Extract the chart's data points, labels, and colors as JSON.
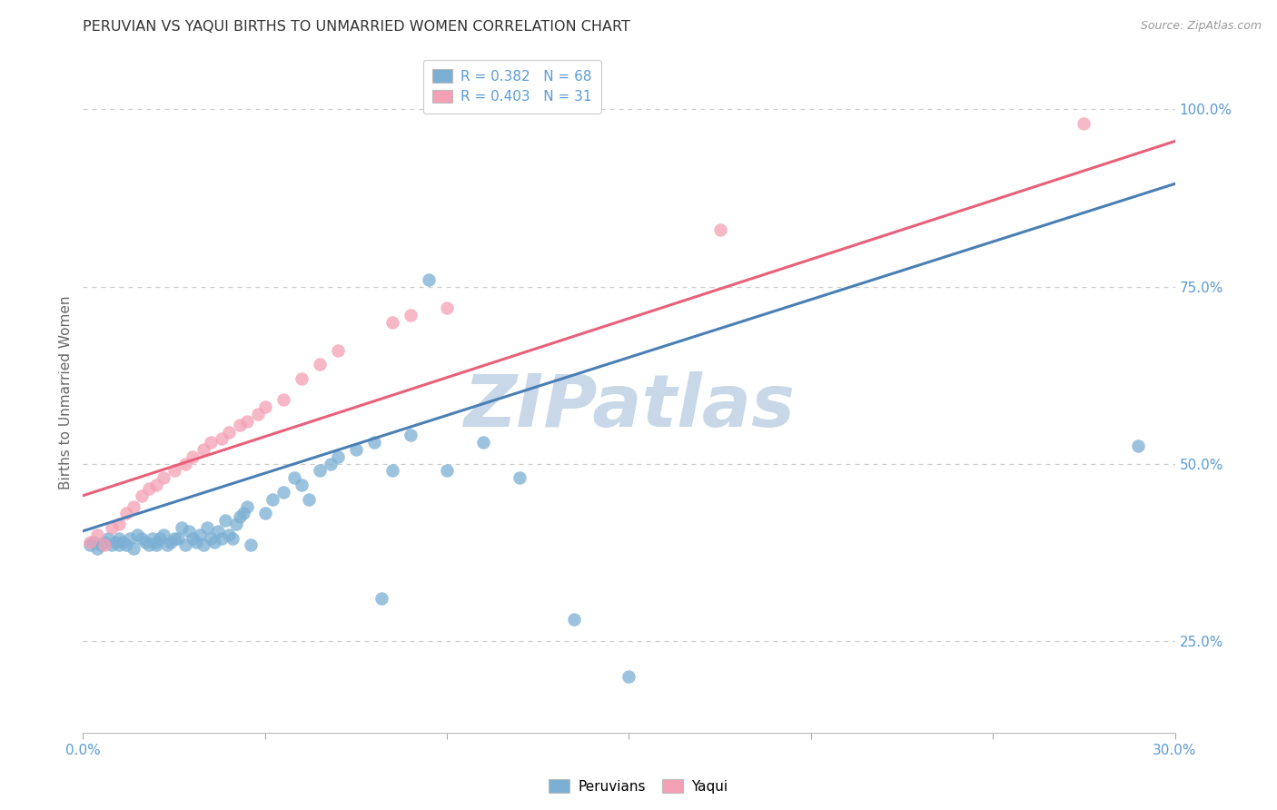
{
  "title": "PERUVIAN VS YAQUI BIRTHS TO UNMARRIED WOMEN CORRELATION CHART",
  "source": "Source: ZipAtlas.com",
  "ylabel": "Births to Unmarried Women",
  "blue_color": "#7bafd4",
  "pink_color": "#f4a0b5",
  "blue_line_color": "#4a7fb5",
  "pink_line_color": "#e8607a",
  "watermark": "ZIPatlas",
  "watermark_color": "#c8d8e8",
  "background_color": "#ffffff",
  "grid_color": "#cccccc",
  "right_tick_color": "#5b9bd5",
  "legend_R_blue": "0.382",
  "legend_N_blue": "68",
  "legend_R_pink": "0.403",
  "legend_N_pink": "31",
  "xlim": [
    0.0,
    0.3
  ],
  "ylim": [
    0.12,
    1.08
  ],
  "yticks": [
    0.25,
    0.5,
    0.75,
    1.0
  ],
  "ytick_labels": [
    "25.0%",
    "50.0%",
    "75.0%",
    "100.0%"
  ],
  "xtick_positions": [
    0.0,
    0.05,
    0.1,
    0.15,
    0.2,
    0.25,
    0.3
  ],
  "xtick_labels": [
    "0.0%",
    "",
    "",
    "",
    "",
    "",
    "30.0%"
  ],
  "blue_line_x0": 0.0,
  "blue_line_y0": 0.405,
  "blue_line_x1": 0.3,
  "blue_line_y1": 0.895,
  "pink_line_x0": 0.0,
  "pink_line_y0": 0.455,
  "pink_line_x1": 0.3,
  "pink_line_y1": 0.955,
  "peruvian_x": [
    0.002,
    0.003,
    0.004,
    0.005,
    0.006,
    0.007,
    0.008,
    0.009,
    0.01,
    0.01,
    0.011,
    0.012,
    0.013,
    0.014,
    0.015,
    0.016,
    0.017,
    0.018,
    0.019,
    0.02,
    0.02,
    0.021,
    0.022,
    0.023,
    0.024,
    0.025,
    0.026,
    0.027,
    0.028,
    0.029,
    0.03,
    0.031,
    0.032,
    0.033,
    0.034,
    0.035,
    0.036,
    0.037,
    0.038,
    0.039,
    0.04,
    0.041,
    0.042,
    0.043,
    0.044,
    0.045,
    0.046,
    0.05,
    0.052,
    0.055,
    0.058,
    0.06,
    0.062,
    0.065,
    0.068,
    0.07,
    0.075,
    0.08,
    0.082,
    0.085,
    0.09,
    0.095,
    0.1,
    0.11,
    0.12,
    0.135,
    0.15,
    0.29
  ],
  "peruvian_y": [
    0.385,
    0.39,
    0.38,
    0.385,
    0.39,
    0.395,
    0.385,
    0.39,
    0.385,
    0.395,
    0.39,
    0.385,
    0.395,
    0.38,
    0.4,
    0.395,
    0.39,
    0.385,
    0.395,
    0.385,
    0.39,
    0.395,
    0.4,
    0.385,
    0.39,
    0.395,
    0.395,
    0.41,
    0.385,
    0.405,
    0.395,
    0.39,
    0.4,
    0.385,
    0.41,
    0.395,
    0.39,
    0.405,
    0.395,
    0.42,
    0.4,
    0.395,
    0.415,
    0.425,
    0.43,
    0.44,
    0.385,
    0.43,
    0.45,
    0.46,
    0.48,
    0.47,
    0.45,
    0.49,
    0.5,
    0.51,
    0.52,
    0.53,
    0.31,
    0.49,
    0.54,
    0.76,
    0.49,
    0.53,
    0.48,
    0.28,
    0.2,
    0.525
  ],
  "yaqui_x": [
    0.002,
    0.004,
    0.006,
    0.008,
    0.01,
    0.012,
    0.014,
    0.016,
    0.018,
    0.02,
    0.022,
    0.025,
    0.028,
    0.03,
    0.033,
    0.035,
    0.038,
    0.04,
    0.043,
    0.045,
    0.048,
    0.05,
    0.055,
    0.06,
    0.065,
    0.07,
    0.085,
    0.09,
    0.1,
    0.175,
    0.275
  ],
  "yaqui_y": [
    0.39,
    0.4,
    0.385,
    0.41,
    0.415,
    0.43,
    0.44,
    0.455,
    0.465,
    0.47,
    0.48,
    0.49,
    0.5,
    0.51,
    0.52,
    0.53,
    0.535,
    0.545,
    0.555,
    0.56,
    0.57,
    0.58,
    0.59,
    0.62,
    0.64,
    0.66,
    0.7,
    0.71,
    0.72,
    0.83,
    0.98
  ]
}
